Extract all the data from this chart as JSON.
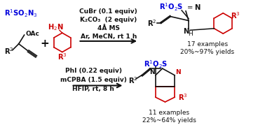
{
  "bg_color": "#ffffff",
  "blue": "#0000dd",
  "red": "#cc0000",
  "black": "#111111",
  "fig_width": 3.78,
  "fig_height": 1.79,
  "dpi": 100,
  "top_conditions": [
    "CuBr (0.1 equiv)",
    "K₂CO₃  (2 equiv)",
    "4Å MS",
    "Ar, MeCN, rt 1 h"
  ],
  "top_yields": [
    "17 examples",
    "20%~97% yields"
  ],
  "bot_conditions": [
    "PhI (0.22 equiv)",
    "mCPBA (1.5 equiv)",
    "HFIP, rt, 8 h"
  ],
  "bot_yields": [
    "11 examples",
    "22%~64% yields"
  ]
}
